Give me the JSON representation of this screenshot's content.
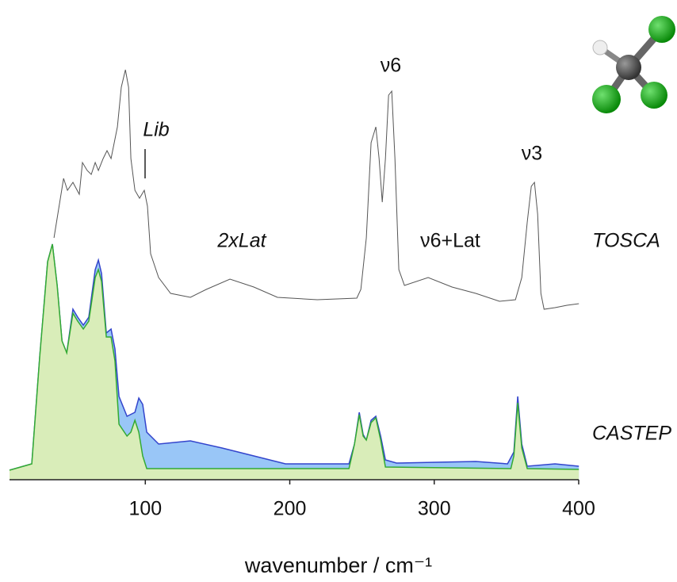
{
  "chart_data": {
    "type": "area",
    "x_label": "wavenumber / cm⁻¹",
    "xlim": [
      6,
      400
    ],
    "xticks": [
      100,
      200,
      300,
      400
    ],
    "ylim": [
      0,
      600
    ],
    "annotations": [
      "Lib",
      "2xLat",
      "ν6",
      "ν6+Lat",
      "ν3"
    ],
    "series": [
      {
        "name": "TOSCA",
        "kind": "line",
        "color": "#555555",
        "x": [
          36.8,
          43.4,
          46.1,
          49.9,
          54.3,
          56.5,
          59.8,
          62.6,
          65.3,
          67.5,
          70.8,
          73.5,
          76.3,
          80.7,
          83.4,
          86.2,
          88.4,
          90.0,
          92.8,
          96.0,
          99.3,
          101.5,
          103.7,
          109.2,
          117.5,
          131.2,
          142.2,
          158.6,
          175.1,
          191.5,
          219.0,
          246.4,
          249.2,
          253.0,
          256.3,
          259.6,
          261.8,
          264.0,
          266.2,
          268.4,
          270.6,
          272.8,
          275.5,
          279.4,
          295.8,
          312.3,
          328.8,
          345.2,
          356.2,
          360.6,
          364.4,
          367.2,
          369.4,
          371.6,
          373.8,
          376.0,
          383.6,
          391.9,
          400.1
        ],
        "values": [
          305,
          380,
          365,
          375,
          360,
          400,
          390,
          385,
          400,
          390,
          405,
          415,
          405,
          445,
          495,
          517,
          495,
          405,
          365,
          355,
          365,
          345,
          285,
          255,
          235,
          230,
          240,
          253,
          243,
          230,
          227,
          229,
          240,
          305,
          425,
          445,
          405,
          350,
          405,
          485,
          490,
          405,
          265,
          245,
          255,
          243,
          235,
          225,
          227,
          255,
          325,
          370,
          375,
          335,
          235,
          215,
          217,
          220,
          222
        ]
      },
      {
        "kind": "area",
        "color": "#3344cc",
        "fill": "#99c6f7",
        "x": [
          6.0,
          21.4,
          26.9,
          32.4,
          35.7,
          39.0,
          42.3,
          45.6,
          49.9,
          53.2,
          57.1,
          60.9,
          65.3,
          67.5,
          69.7,
          73.0,
          76.3,
          79.0,
          81.8,
          87.3,
          92.8,
          95.5,
          98.2,
          101.0,
          109.2,
          131.2,
          153.1,
          175.1,
          197.0,
          241.0,
          244.8,
          248.1,
          250.8,
          253.0,
          256.3,
          259.6,
          262.9,
          266.2,
          273.9,
          301.3,
          328.8,
          350.7,
          355.1,
          357.8,
          360.6,
          364.4,
          383.6,
          400.1
        ],
        "values": [
          12,
          20,
          155,
          275,
          297,
          245,
          175,
          160,
          215,
          205,
          195,
          205,
          265,
          277,
          260,
          185,
          190,
          165,
          105,
          80,
          85,
          103,
          95,
          60,
          45,
          49,
          40,
          30,
          20,
          20,
          45,
          85,
          57,
          50,
          75,
          80,
          55,
          25,
          21,
          22,
          23,
          20,
          35,
          105,
          45,
          17,
          20,
          17
        ]
      },
      {
        "name": "CASTEP",
        "kind": "area",
        "color": "#33aa33",
        "fill": "#d9edb9",
        "x": [
          6.0,
          21.4,
          26.9,
          32.4,
          35.7,
          39.0,
          42.3,
          45.6,
          49.9,
          53.2,
          57.1,
          60.9,
          65.3,
          67.5,
          69.7,
          73.0,
          76.3,
          79.0,
          81.8,
          87.3,
          90.0,
          92.8,
          95.5,
          98.2,
          101.0,
          241.0,
          244.8,
          248.1,
          250.8,
          253.0,
          256.3,
          259.6,
          262.9,
          266.2,
          353.0,
          355.1,
          357.8,
          360.6,
          364.4,
          400.1
        ],
        "values": [
          12,
          20,
          155,
          275,
          297,
          245,
          175,
          160,
          210,
          200,
          190,
          200,
          255,
          265,
          250,
          180,
          180,
          150,
          70,
          55,
          60,
          75,
          60,
          30,
          14,
          14,
          45,
          82,
          55,
          50,
          72,
          78,
          50,
          16,
          14,
          30,
          97,
          40,
          14,
          13
        ]
      }
    ]
  }
}
